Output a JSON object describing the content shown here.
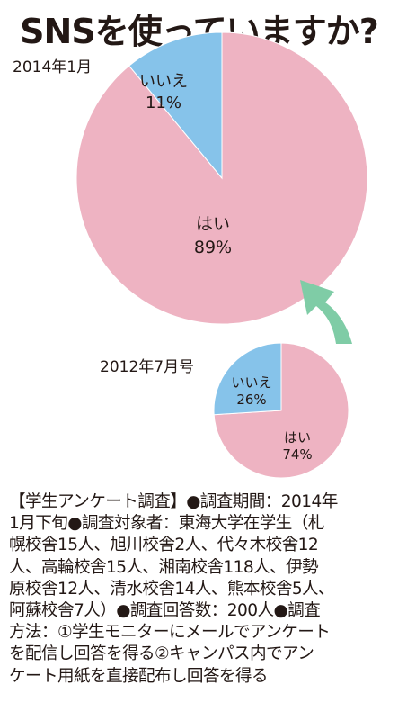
{
  "title": "SNSを使っていますか?",
  "chart_data": [
    {
      "type": "pie",
      "title": "2014年1月",
      "slices": [
        {
          "label": "はい",
          "value": 89,
          "value_label": "89%",
          "color": "#eeb3c2"
        },
        {
          "label": "いいえ",
          "value": 11,
          "value_label": "11%",
          "color": "#86c3ea"
        }
      ]
    },
    {
      "type": "pie",
      "title": "2012年7月号",
      "slices": [
        {
          "label": "はい",
          "value": 74,
          "value_label": "74%",
          "color": "#eeb3c2"
        },
        {
          "label": "いいえ",
          "value": 26,
          "value_label": "26%",
          "color": "#86c3ea"
        }
      ]
    }
  ],
  "arrow_color": "#7fcca6",
  "note": "【学生アンケート調査】●調査期間：2014年\n1月下旬●調査対象者：東海大学在学生（札\n幌校舎15人、旭川校舎2人、代々木校舎12\n人、高輪校舎15人、湘南校舎118人、伊勢\n原校舎12人、清水校舎14人、熊本校舎5人、\n阿蘇校舎7人）●調査回答数：200人●調査\n方法：①学生モニターにメールでアンケート\nを配信し回答を得る②キャンパス内でアン\nケート用紙を直接配布し回答を得る"
}
